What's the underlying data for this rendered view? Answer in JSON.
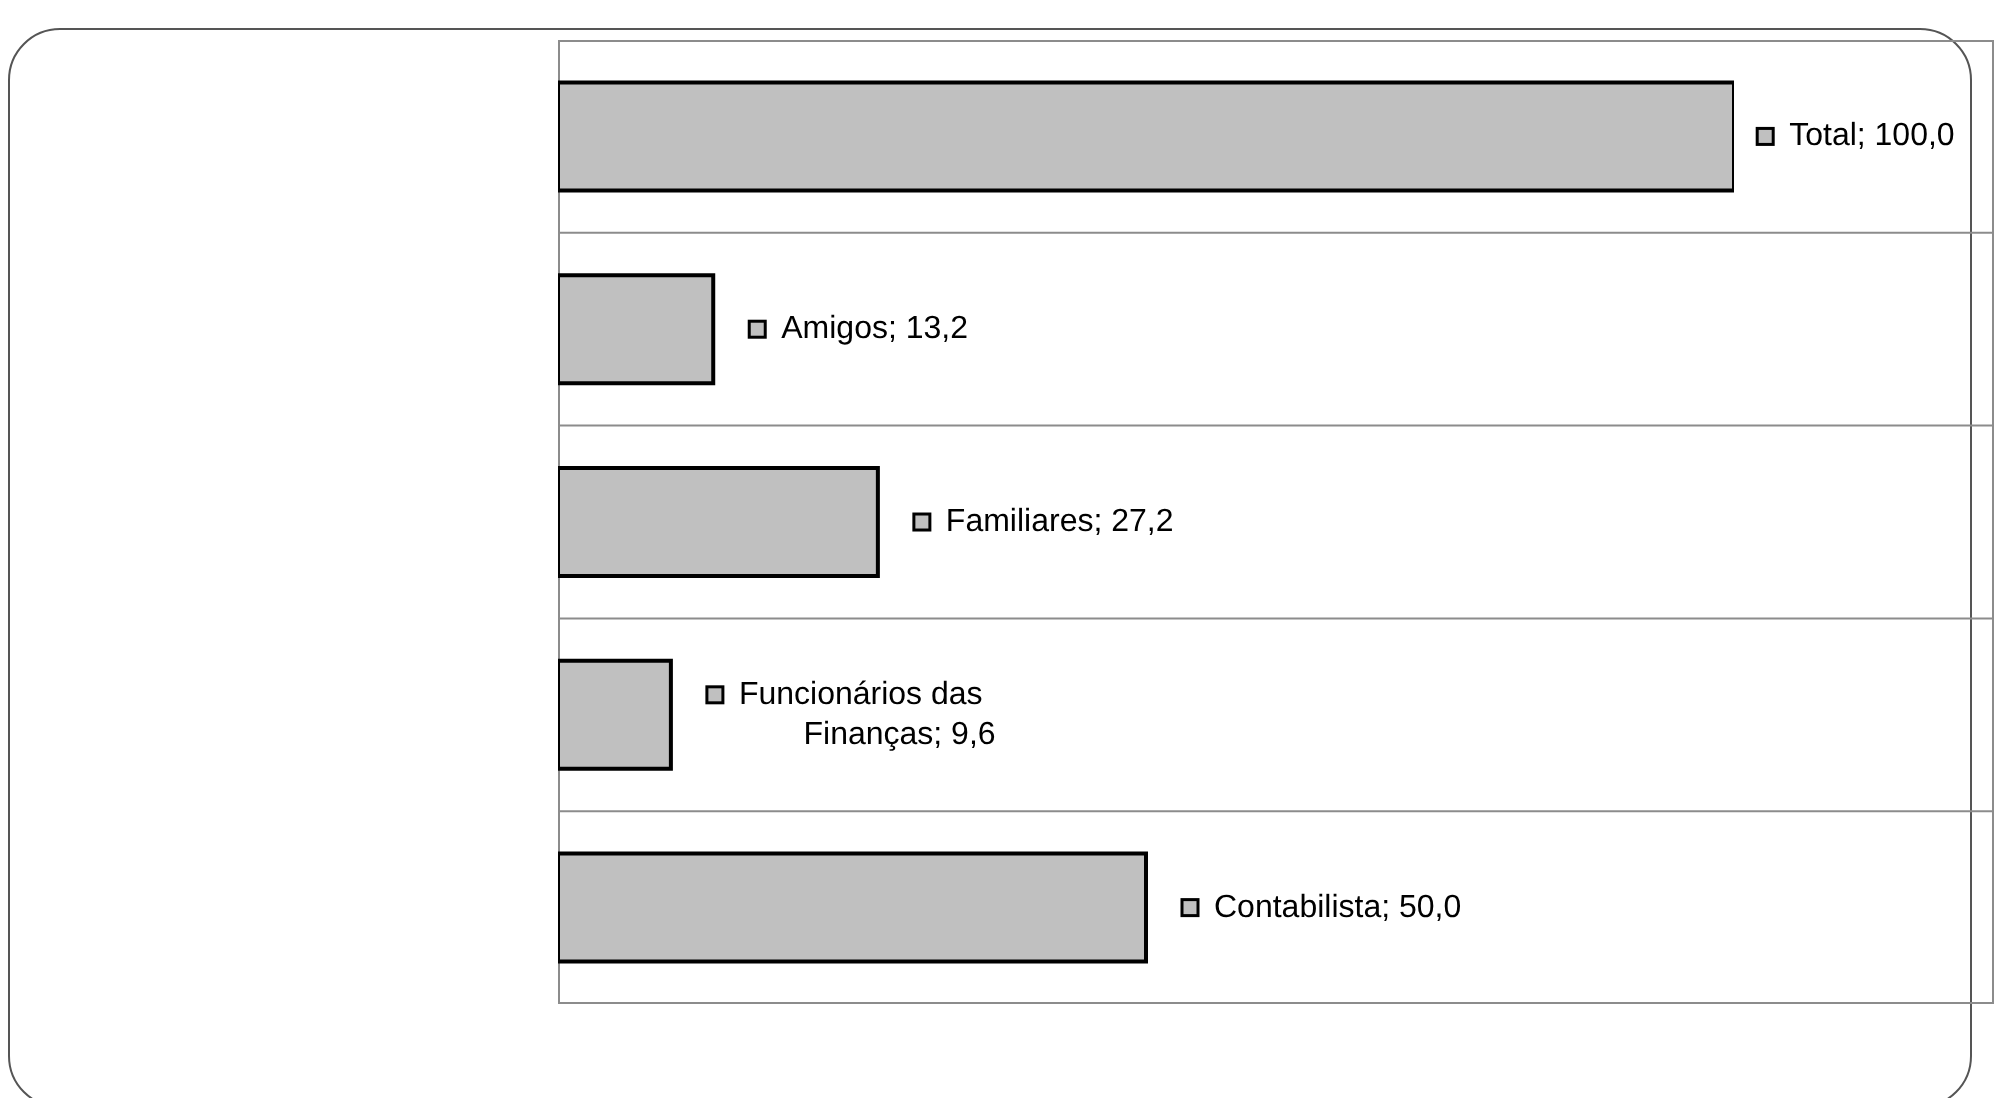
{
  "chart_data": {
    "type": "bar",
    "orientation": "horizontal",
    "categories": [
      null,
      null,
      null,
      null,
      null
    ],
    "values": [
      100.0,
      13.2,
      27.2,
      9.6,
      50.0
    ],
    "value_labels": [
      "Total; 100,0",
      "Amigos; 13,2",
      "Familiares; 27,2",
      "Funcionários das Finanças; 9,6",
      "Contabilista; 50,0"
    ],
    "color": "#c0c0c0",
    "tick_labels": false,
    "grid": "y"
  }
}
